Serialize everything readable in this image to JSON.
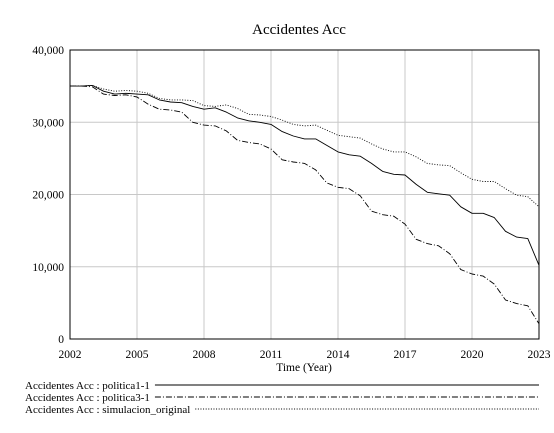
{
  "chart_data": {
    "type": "line",
    "title": "Accidentes Acc",
    "xlabel": "Time (Year)",
    "ylabel": "",
    "xlim": [
      2002,
      2023
    ],
    "ylim": [
      0,
      40000
    ],
    "xticks": [
      2002,
      2005,
      2008,
      2011,
      2014,
      2017,
      2020,
      2023
    ],
    "xtick_labels": [
      "2002",
      "2005",
      "2008",
      "2011",
      "2014",
      "2017",
      "2020",
      "2023"
    ],
    "yticks": [
      0,
      10000,
      20000,
      30000,
      40000
    ],
    "ytick_labels": [
      "0",
      "10,000",
      "20,000",
      "30,000",
      "40,000"
    ],
    "grid": true,
    "legend_position": "bottom",
    "x": [
      2002,
      2002.5,
      2003,
      2003.5,
      2004,
      2004.5,
      2005,
      2005.5,
      2006,
      2006.5,
      2007,
      2007.5,
      2008,
      2008.5,
      2009,
      2009.5,
      2010,
      2010.5,
      2011,
      2011.5,
      2012,
      2012.5,
      2013,
      2013.5,
      2014,
      2014.5,
      2015,
      2015.5,
      2016,
      2016.5,
      2017,
      2017.5,
      2018,
      2018.5,
      2019,
      2019.5,
      2020,
      2020.5,
      2021,
      2021.5,
      2022,
      2022.5,
      2023
    ],
    "series": [
      {
        "name": "Accidentes Acc : politica1-1",
        "dash": "solid",
        "values": [
          35000,
          35000,
          35100,
          34300,
          33900,
          34000,
          33900,
          33800,
          33100,
          32800,
          32700,
          32200,
          31800,
          32000,
          31400,
          30600,
          30200,
          30000,
          29700,
          28700,
          28100,
          27700,
          27700,
          26800,
          25900,
          25500,
          25300,
          24300,
          23200,
          22800,
          22700,
          21400,
          20300,
          20100,
          19900,
          18300,
          17400,
          17400,
          16800,
          14900,
          14100,
          13900,
          10200
        ]
      },
      {
        "name": "Accidentes Acc : politica3-1",
        "dash": "dashdot",
        "values": [
          35000,
          35000,
          34900,
          33900,
          33700,
          33800,
          33500,
          32500,
          31800,
          31700,
          31400,
          30000,
          29600,
          29500,
          28800,
          27500,
          27200,
          27000,
          26300,
          24800,
          24500,
          24300,
          23400,
          21600,
          21000,
          20800,
          19800,
          17700,
          17200,
          17000,
          15900,
          13800,
          13200,
          12900,
          11800,
          9600,
          9000,
          8700,
          7600,
          5400,
          4900,
          4600,
          2100
        ]
      },
      {
        "name": "Accidentes Acc : simulacion_original",
        "dash": "dotted",
        "values": [
          35000,
          35000,
          35100,
          34600,
          34300,
          34400,
          34300,
          34000,
          33300,
          33100,
          33100,
          33000,
          32300,
          32200,
          32400,
          31900,
          31100,
          31000,
          30800,
          30300,
          29700,
          29500,
          29600,
          28900,
          28200,
          28000,
          27800,
          27000,
          26300,
          25900,
          25900,
          25200,
          24300,
          24100,
          24000,
          23000,
          22100,
          21800,
          21800,
          20800,
          19900,
          19700,
          18300
        ]
      }
    ]
  }
}
